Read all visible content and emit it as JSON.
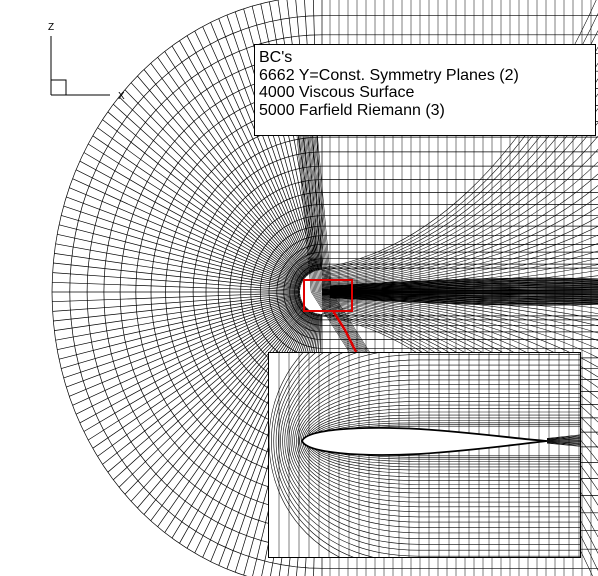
{
  "axes_triad": {
    "vertical_axis": "Z",
    "horizontal_axis": "X"
  },
  "legend": {
    "title": "BC's",
    "entries": [
      "6662 Y=Const. Symmetry Planes (2)",
      "4000 Viscous Surface",
      "5000 Farfield Riemann (3)"
    ]
  },
  "colors": {
    "mesh_lines": "#000000",
    "zoom_region": "#e00000",
    "airfoil_fill": "#ffffff"
  },
  "inset": {
    "content": "zoomed airfoil near-body mesh"
  }
}
